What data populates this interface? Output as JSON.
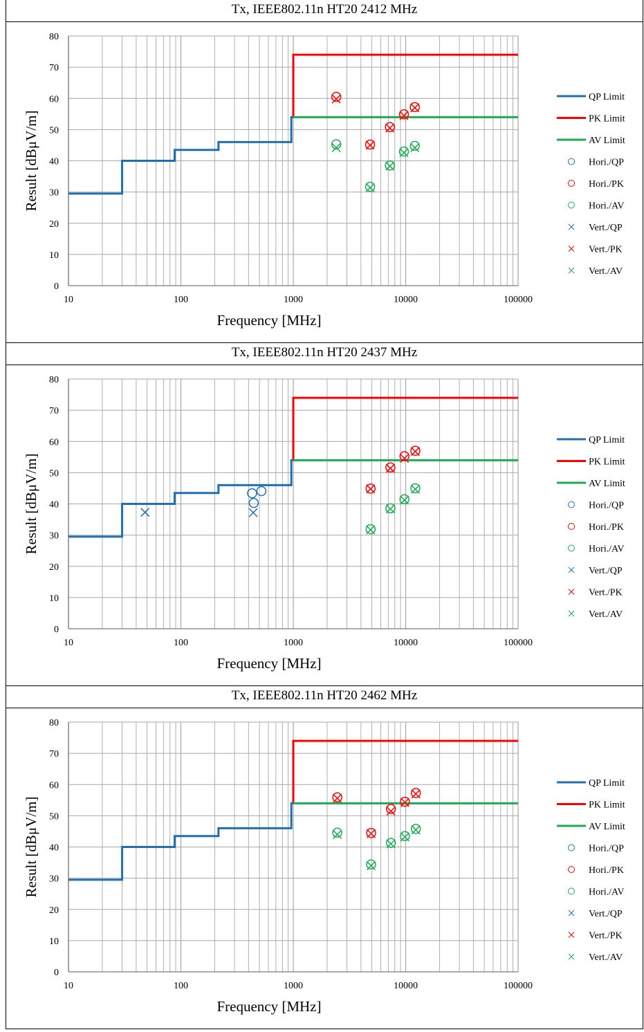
{
  "colors": {
    "qp": "#1f6fb2",
    "pk": "#ff0000",
    "av": "#1aac50",
    "grid": "#a6a6a6",
    "axis": "#595959"
  },
  "chart_data": [
    {
      "type": "scatter",
      "title": "Tx, IEEE802.11n HT20 2412 MHz",
      "xlabel": "Frequency [MHz]",
      "ylabel": "Result [dBμV/m]",
      "x_scale": "log",
      "xlim": [
        10,
        100000
      ],
      "ylim": [
        0,
        80
      ],
      "x_ticks": [
        "10",
        "100",
        "1000",
        "10000",
        "100000"
      ],
      "y_ticks": [
        "0",
        "10",
        "20",
        "30",
        "40",
        "50",
        "60",
        "70",
        "80"
      ],
      "grid": true,
      "legend_position": "right",
      "legend": [
        "QP Limit",
        "PK Limit",
        "AV Limit",
        "Hori./QP",
        "Hori./PK",
        "Hori./AV",
        "Vert./QP",
        "Vert./PK",
        "Vert./AV"
      ],
      "limits": [
        {
          "name": "QP Limit",
          "x": [
            10,
            30,
            30,
            88,
            88,
            216,
            216,
            960,
            960,
            1000
          ],
          "y": [
            29.5,
            29.5,
            40,
            40,
            43.5,
            43.5,
            46,
            46,
            54,
            54
          ]
        },
        {
          "name": "PK Limit",
          "x": [
            1000,
            1000,
            100000
          ],
          "y": [
            54,
            74,
            74
          ]
        },
        {
          "name": "AV Limit",
          "x": [
            1000,
            100000
          ],
          "y": [
            54,
            54
          ]
        }
      ],
      "series": [
        {
          "name": "Hori./QP",
          "x": [],
          "y": []
        },
        {
          "name": "Hori./PK",
          "x": [
            2412,
            4824,
            7236,
            9648,
            12060
          ],
          "y": [
            60.5,
            45.2,
            50.8,
            54.9,
            57.2
          ]
        },
        {
          "name": "Hori./AV",
          "x": [
            2412,
            4824,
            7236,
            9648,
            12060
          ],
          "y": [
            45.3,
            31.7,
            38.5,
            43.0,
            44.8
          ]
        },
        {
          "name": "Vert./QP",
          "x": [],
          "y": []
        },
        {
          "name": "Vert./PK",
          "x": [
            2412,
            4824,
            7236,
            9648,
            12060
          ],
          "y": [
            59.8,
            45.0,
            50.5,
            54.5,
            57.0
          ]
        },
        {
          "name": "Vert./AV",
          "x": [
            2412,
            4824,
            7236,
            9648,
            12060
          ],
          "y": [
            44.2,
            31.4,
            38.3,
            42.6,
            44.2
          ]
        }
      ]
    },
    {
      "type": "scatter",
      "title": "Tx, IEEE802.11n HT20 2437 MHz",
      "xlabel": "Frequency [MHz]",
      "ylabel": "Result [dBμV/m]",
      "x_scale": "log",
      "xlim": [
        10,
        100000
      ],
      "ylim": [
        0,
        80
      ],
      "x_ticks": [
        "10",
        "100",
        "1000",
        "10000",
        "100000"
      ],
      "y_ticks": [
        "0",
        "10",
        "20",
        "30",
        "40",
        "50",
        "60",
        "70",
        "80"
      ],
      "grid": true,
      "legend_position": "right",
      "legend": [
        "QP Limit",
        "PK Limit",
        "AV Limit",
        "Hori./QP",
        "Hori./PK",
        "Hori./AV",
        "Vert./QP",
        "Vert./PK",
        "Vert./AV"
      ],
      "limits": [
        {
          "name": "QP Limit",
          "x": [
            10,
            30,
            30,
            88,
            88,
            216,
            216,
            960,
            960,
            1000
          ],
          "y": [
            29.5,
            29.5,
            40,
            40,
            43.5,
            43.5,
            46,
            46,
            54,
            54
          ]
        },
        {
          "name": "PK Limit",
          "x": [
            1000,
            1000,
            100000
          ],
          "y": [
            54,
            74,
            74
          ]
        },
        {
          "name": "AV Limit",
          "x": [
            1000,
            100000
          ],
          "y": [
            54,
            54
          ]
        }
      ],
      "series": [
        {
          "name": "Hori./QP",
          "x": [
            430,
            445,
            520
          ],
          "y": [
            43.4,
            40.3,
            44.1
          ]
        },
        {
          "name": "Hori./PK",
          "x": [
            4874,
            7311,
            9748,
            12185
          ],
          "y": [
            44.9,
            51.7,
            55.3,
            57.0
          ]
        },
        {
          "name": "Hori./AV",
          "x": [
            4874,
            7311,
            9748,
            12185
          ],
          "y": [
            31.9,
            38.6,
            41.5,
            45.0
          ]
        },
        {
          "name": "Vert./QP",
          "x": [
            48,
            440
          ],
          "y": [
            37.3,
            37.2
          ]
        },
        {
          "name": "Vert./PK",
          "x": [
            4874,
            7311,
            9748,
            12185
          ],
          "y": [
            44.8,
            51.4,
            54.6,
            56.8
          ]
        },
        {
          "name": "Vert./AV",
          "x": [
            4874,
            7311,
            9748,
            12185
          ],
          "y": [
            31.7,
            38.4,
            41.2,
            44.7
          ]
        }
      ]
    },
    {
      "type": "scatter",
      "title": "Tx, IEEE802.11n HT20 2462 MHz",
      "xlabel": "Frequency [MHz]",
      "ylabel": "Result [dBμV/m]",
      "x_scale": "log",
      "xlim": [
        10,
        100000
      ],
      "ylim": [
        0,
        80
      ],
      "x_ticks": [
        "10",
        "100",
        "1000",
        "10000",
        "100000"
      ],
      "y_ticks": [
        "0",
        "10",
        "20",
        "30",
        "40",
        "50",
        "60",
        "70",
        "80"
      ],
      "grid": true,
      "legend_position": "right",
      "legend": [
        "QP Limit",
        "PK Limit",
        "AV Limit",
        "Hori./QP",
        "Hori./PK",
        "Hori./AV",
        "Vert./QP",
        "Vert./PK",
        "Vert./AV"
      ],
      "limits": [
        {
          "name": "QP Limit",
          "x": [
            10,
            30,
            30,
            88,
            88,
            216,
            216,
            960,
            960,
            1000
          ],
          "y": [
            29.5,
            29.5,
            40,
            40,
            43.5,
            43.5,
            46,
            46,
            54,
            54
          ]
        },
        {
          "name": "PK Limit",
          "x": [
            1000,
            1000,
            100000
          ],
          "y": [
            54,
            74,
            74
          ]
        },
        {
          "name": "AV Limit",
          "x": [
            1000,
            100000
          ],
          "y": [
            54,
            54
          ]
        }
      ],
      "series": [
        {
          "name": "Hori./QP",
          "x": [],
          "y": []
        },
        {
          "name": "Hori./PK",
          "x": [
            2462,
            4924,
            7386,
            9848,
            12310
          ],
          "y": [
            55.9,
            44.5,
            52.2,
            54.5,
            57.3
          ]
        },
        {
          "name": "Hori./AV",
          "x": [
            2462,
            4924,
            7386,
            9848,
            12310
          ],
          "y": [
            44.6,
            34.4,
            41.3,
            43.5,
            45.8
          ]
        },
        {
          "name": "Vert./QP",
          "x": [],
          "y": []
        },
        {
          "name": "Vert./PK",
          "x": [
            2462,
            4924,
            7386,
            9848,
            12310
          ],
          "y": [
            55.6,
            44.3,
            51.5,
            54.3,
            57.0
          ]
        },
        {
          "name": "Vert./AV",
          "x": [
            2462,
            4924,
            7386,
            9848,
            12310
          ],
          "y": [
            44.0,
            34.0,
            41.0,
            43.2,
            45.5
          ]
        }
      ]
    }
  ]
}
